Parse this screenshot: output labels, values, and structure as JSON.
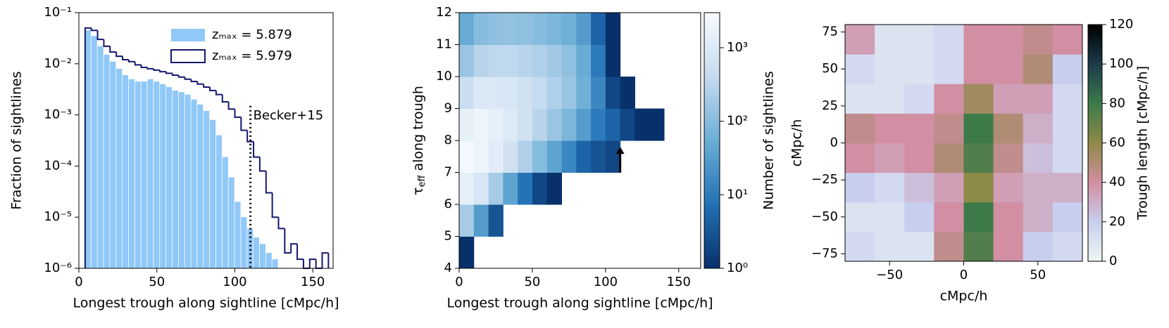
{
  "chart_data": [
    {
      "type": "histogram",
      "xlabel": "Longest trough along sightline [cMpc/h]",
      "ylabel": "Fraction of sightlines",
      "xlim": [
        0,
        163
      ],
      "xticks": [
        0,
        50,
        100,
        150
      ],
      "ylim": [
        1e-06,
        0.1
      ],
      "ylog": true,
      "yticks": [
        {
          "value": 1e-06,
          "label": "10⁻⁶"
        },
        {
          "value": 1e-05,
          "label": "10⁻⁵"
        },
        {
          "value": 0.0001,
          "label": "10⁻⁴"
        },
        {
          "value": 0.001,
          "label": "10⁻³"
        },
        {
          "value": 0.01,
          "label": "10⁻²"
        },
        {
          "value": 0.1,
          "label": "10⁻¹"
        }
      ],
      "bins": [
        4,
        8,
        12,
        16,
        20,
        24,
        28,
        32,
        36,
        40,
        44,
        48,
        52,
        56,
        60,
        64,
        68,
        72,
        76,
        80,
        84,
        88,
        92,
        96,
        100,
        104,
        108,
        112,
        116,
        120,
        124,
        128,
        132,
        136,
        140,
        144,
        148,
        152,
        156,
        160
      ],
      "legend": "upper right",
      "series": [
        {
          "name": "zₘₐₓ = 5.879",
          "style": "fill",
          "color": "#90c8f8",
          "values": [
            0.045,
            0.035,
            0.022,
            0.015,
            0.011,
            0.008,
            0.006,
            0.005,
            0.0045,
            0.0045,
            0.005,
            0.0045,
            0.004,
            0.0035,
            0.003,
            0.0028,
            0.0025,
            0.002,
            0.0016,
            0.0012,
            0.0008,
            0.0004,
            0.00015,
            6e-05,
            2e-05,
            1e-05,
            6e-06,
            4e-06,
            3e-06,
            2e-06,
            1.5e-06,
            null,
            null,
            null,
            null,
            null,
            null,
            null,
            null
          ]
        },
        {
          "name": "zₘₐₓ = 5.979",
          "style": "step",
          "color": "#16166e",
          "values": [
            0.05,
            0.045,
            0.03,
            0.022,
            0.017,
            0.014,
            0.012,
            0.011,
            0.0095,
            0.0085,
            0.008,
            0.0075,
            0.007,
            0.0065,
            0.006,
            0.0055,
            0.005,
            0.0045,
            0.004,
            0.0035,
            0.003,
            0.0025,
            0.0018,
            0.0013,
            0.0009,
            0.0005,
            0.0003,
            0.00015,
            8e-05,
            3e-05,
            1e-05,
            6e-06,
            2e-06,
            3e-06,
            1.5e-06,
            null,
            1.5e-06,
            null,
            2e-06
          ]
        }
      ],
      "annotation": {
        "text": "Becker+15",
        "x": 110,
        "y": 0.0015
      }
    },
    {
      "type": "heatmap",
      "xlabel": "Longest trough along sightline [cMpc/h]",
      "ylabel": {
        "symbol": "τ",
        "subscript": "eff",
        "text": " along trough"
      },
      "xlim": [
        0,
        165
      ],
      "xticks": [
        0,
        50,
        100,
        150
      ],
      "ylim": [
        4,
        12
      ],
      "yticks": [
        4,
        5,
        6,
        7,
        8,
        9,
        10,
        11,
        12
      ],
      "x_bins": [
        0,
        10,
        20,
        30,
        40,
        50,
        60,
        70,
        80,
        90,
        100,
        110,
        120,
        130,
        140,
        150
      ],
      "y_bins": [
        4,
        5,
        6,
        7,
        8,
        9,
        10,
        11,
        12
      ],
      "z": [
        [
          1,
          null,
          null,
          null,
          null,
          null,
          null,
          null,
          null,
          null,
          null,
          null,
          null,
          null,
          null
        ],
        [
          200,
          30,
          3,
          null,
          null,
          null,
          null,
          null,
          null,
          null,
          null,
          null,
          null,
          null,
          null
        ],
        [
          1500,
          800,
          200,
          40,
          8,
          2,
          1,
          null,
          null,
          null,
          null,
          null,
          null,
          null,
          null
        ],
        [
          2500,
          2000,
          1200,
          600,
          250,
          100,
          40,
          15,
          5,
          3,
          2,
          null,
          null,
          null,
          null
        ],
        [
          1500,
          2000,
          1500,
          1000,
          600,
          300,
          150,
          80,
          30,
          10,
          5,
          2,
          1,
          1,
          null
        ],
        [
          500,
          900,
          900,
          800,
          600,
          400,
          250,
          150,
          60,
          15,
          2,
          1,
          null,
          null,
          null
        ],
        [
          150,
          300,
          350,
          350,
          300,
          250,
          180,
          120,
          50,
          10,
          1,
          null,
          null,
          null,
          null
        ],
        [
          50,
          100,
          120,
          130,
          120,
          100,
          80,
          60,
          30,
          5,
          1,
          null,
          null,
          null,
          null
        ]
      ],
      "zlog": true,
      "zlim": [
        1,
        3000
      ],
      "colormap": [
        "#08306b",
        "#2171b5",
        "#6baed6",
        "#c6dbef",
        "#f7fbff"
      ],
      "colorbar": {
        "label": "Number of sightlines",
        "ticks": [
          {
            "value": 1,
            "label": "10⁰"
          },
          {
            "value": 10,
            "label": "10¹"
          },
          {
            "value": 100,
            "label": "10²"
          },
          {
            "value": 1000,
            "label": "10³"
          }
        ]
      },
      "arrow": {
        "x": 110,
        "y_tail": 7.0,
        "y_head": 7.8
      }
    },
    {
      "type": "heatmap",
      "xlabel": "cMpc/h",
      "ylabel": "cMpc/h",
      "xlim": [
        -80,
        80
      ],
      "xticks": [
        {
          "value": -50,
          "label": "−50"
        },
        0,
        50
      ],
      "ylim": [
        -80,
        80
      ],
      "yticks": [
        {
          "value": -75,
          "label": "−75"
        },
        {
          "value": -50,
          "label": "−50"
        },
        {
          "value": -25,
          "label": "−25"
        },
        0,
        25,
        50,
        75
      ],
      "x_bins": [
        -80,
        -60,
        -40,
        -20,
        0,
        20,
        40,
        60,
        80
      ],
      "y_bins": [
        -80,
        -60,
        -40,
        -20,
        0,
        20,
        40,
        60,
        80
      ],
      "z": [
        [
          15,
          10,
          10,
          45,
          75,
          40,
          20,
          15
        ],
        [
          10,
          10,
          20,
          40,
          80,
          40,
          30,
          20
        ],
        [
          20,
          15,
          25,
          35,
          60,
          35,
          30,
          30
        ],
        [
          40,
          35,
          40,
          50,
          75,
          45,
          25,
          15
        ],
        [
          45,
          40,
          40,
          45,
          80,
          50,
          30,
          15
        ],
        [
          10,
          10,
          15,
          40,
          55,
          35,
          35,
          15
        ],
        [
          15,
          10,
          10,
          15,
          40,
          40,
          50,
          20
        ],
        [
          35,
          10,
          10,
          15,
          40,
          40,
          45,
          40
        ]
      ],
      "zlog": false,
      "zlim": [
        0,
        120
      ],
      "colormap": [
        "#eef6f4",
        "#c8cfee",
        "#d28ea2",
        "#8e8a48",
        "#3d7a4a",
        "#1c3a4a",
        "#000000"
      ],
      "colorbar": {
        "label": "Trough length [cMpc/h]",
        "ticks": [
          0,
          20,
          40,
          60,
          80,
          100,
          120
        ]
      }
    }
  ]
}
